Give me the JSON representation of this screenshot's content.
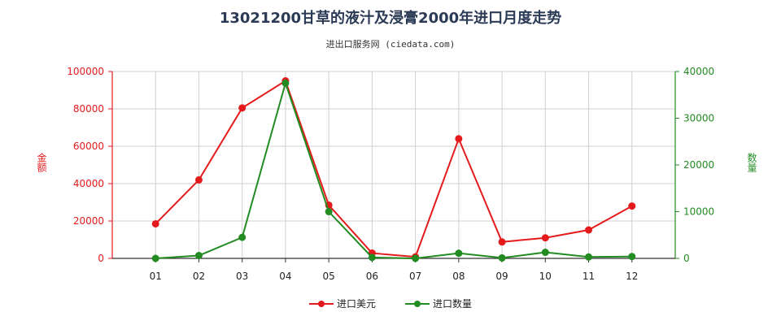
{
  "title": "13021200甘草的液汁及浸膏2000年进口月度走势",
  "subtitle": "进出口服务网 (ciedata.com)",
  "chart_data": {
    "type": "line",
    "categories": [
      "01",
      "02",
      "03",
      "04",
      "05",
      "06",
      "07",
      "08",
      "09",
      "10",
      "11",
      "12"
    ],
    "series": [
      {
        "name": "进口美元",
        "axis": "left",
        "color": "#e41a1c",
        "values": [
          18500,
          42000,
          80500,
          95000,
          28500,
          2800,
          800,
          64000,
          8800,
          11000,
          15200,
          28000
        ]
      },
      {
        "name": "进口数量",
        "axis": "right",
        "color": "#228b22",
        "values": [
          0,
          600,
          4500,
          37500,
          10000,
          200,
          0,
          1100,
          100,
          1300,
          300,
          400
        ]
      }
    ],
    "ylabel_left": "金额",
    "ylabel_right": "数量",
    "ylim_left": [
      0,
      100000
    ],
    "yticks_left": [
      "0",
      "20000",
      "40000",
      "60000",
      "80000",
      "100000"
    ],
    "ylim_right": [
      0,
      40000
    ],
    "yticks_right": [
      "0",
      "10000",
      "20000",
      "30000",
      "40000"
    ],
    "grid": true,
    "legend_position": "bottom"
  }
}
